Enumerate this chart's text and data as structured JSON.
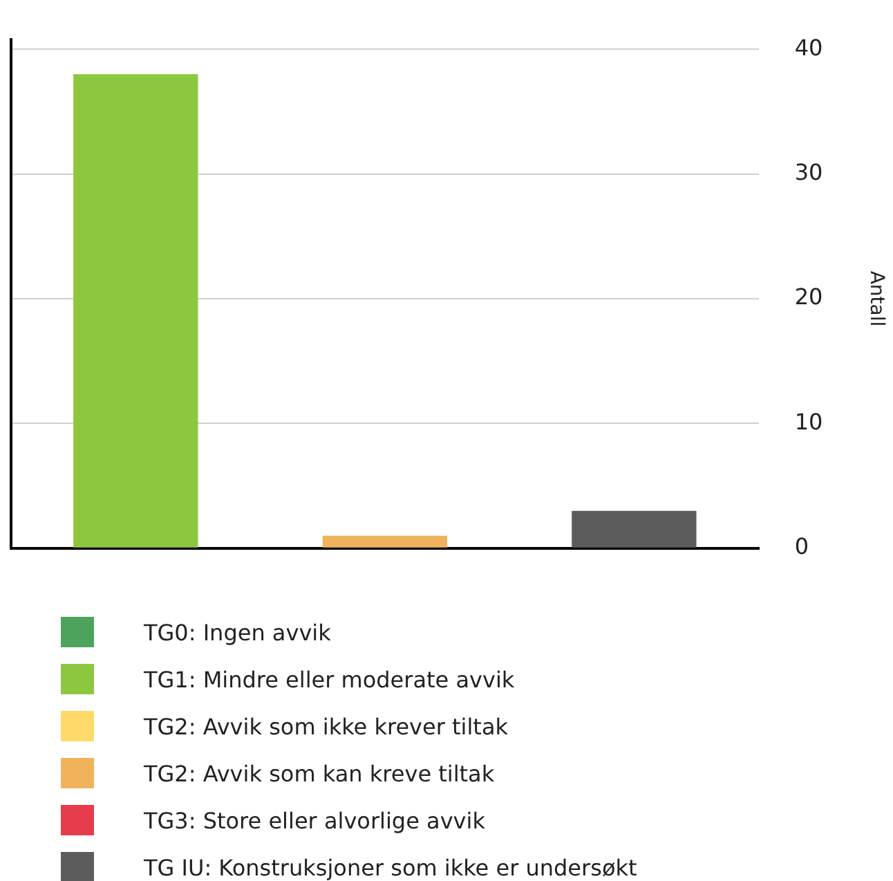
{
  "chart_data": {
    "type": "bar",
    "ylabel": "Antall",
    "categories": [
      null,
      null,
      null
    ],
    "stacked": true,
    "series": [
      {
        "name": "TG0: Ingen avvik",
        "color": "#4ea35c",
        "values": [
          null,
          null,
          null
        ]
      },
      {
        "name": "TG1: Mindre eller moderate avvik",
        "color": "#8dc63f",
        "values": [
          38,
          null,
          null
        ]
      },
      {
        "name": "TG2: Avvik som ikke krever tiltak",
        "color": "#ffda6a",
        "values": [
          null,
          null,
          null
        ]
      },
      {
        "name": "TG2: Avvik som kan kreve tiltak",
        "color": "#f0b35c",
        "values": [
          null,
          1,
          null
        ]
      },
      {
        "name": "TG3: Store eller alvorlige avvik",
        "color": "#e63c4b",
        "values": [
          null,
          null,
          null
        ]
      },
      {
        "name": "TG IU: Konstruksjoner som ikke er undersøkt",
        "color": "#5c5c5c",
        "values": [
          null,
          null,
          3
        ]
      }
    ],
    "ylim": [
      0,
      40
    ],
    "yticks": [
      0,
      10,
      20,
      30,
      40
    ],
    "grid": "y",
    "legend": "bottom"
  }
}
